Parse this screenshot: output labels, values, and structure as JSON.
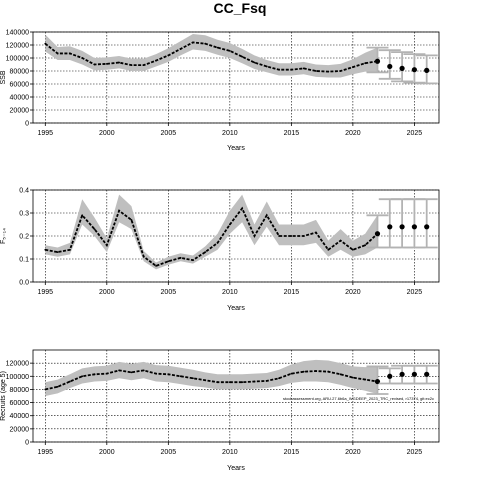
{
  "title": "CC_Fsq",
  "colors": {
    "band": "#bfbfbf",
    "line": "#000000",
    "forecast_bar": "#b3b3b3",
    "grid": "#000000"
  },
  "annotation": "stockassessment.org, ARU.27.6b6a_WGDEEP_2023_TRC_revised, r17374, git:ec2c",
  "chart_data": [
    {
      "type": "line",
      "xlabel": "Years",
      "ylabel": "SSB",
      "xlim": [
        1994,
        2027
      ],
      "ylim": [
        0,
        140000
      ],
      "x_ticks": [
        1995,
        2000,
        2005,
        2010,
        2015,
        2020,
        2025
      ],
      "y_ticks": [
        0,
        20000,
        40000,
        60000,
        80000,
        100000,
        120000,
        140000
      ],
      "grid": true,
      "x": [
        1995,
        1996,
        1997,
        1998,
        1999,
        2000,
        2001,
        2002,
        2003,
        2004,
        2005,
        2006,
        2007,
        2008,
        2009,
        2010,
        2011,
        2012,
        2013,
        2014,
        2015,
        2016,
        2017,
        2018,
        2019,
        2020,
        2021,
        2022
      ],
      "values": [
        122000,
        107000,
        107000,
        100000,
        90000,
        91000,
        93000,
        89000,
        89000,
        96000,
        104000,
        114000,
        124000,
        122000,
        116000,
        111000,
        102000,
        93000,
        87000,
        82000,
        82000,
        84000,
        80000,
        79000,
        80000,
        86000,
        92000,
        95000
      ],
      "lower": [
        110000,
        97000,
        97000,
        90000,
        81000,
        82000,
        84000,
        80000,
        80000,
        87000,
        94000,
        104000,
        113000,
        111000,
        105000,
        100000,
        92000,
        83000,
        78000,
        73000,
        73000,
        75000,
        71000,
        70000,
        70000,
        75000,
        79000,
        78000
      ],
      "upper": [
        136000,
        117000,
        118000,
        111000,
        100000,
        101000,
        103000,
        99000,
        99000,
        106000,
        115000,
        126000,
        137000,
        135000,
        128000,
        123000,
        114000,
        104000,
        97000,
        92000,
        92000,
        94000,
        90000,
        89000,
        91000,
        98000,
        108000,
        116000
      ],
      "forecast": {
        "x": [
          2022,
          2023,
          2024,
          2025,
          2026
        ],
        "values": [
          95000,
          87000,
          84000,
          82000,
          81000
        ],
        "lower": [
          78000,
          68000,
          64000,
          62000,
          61000
        ],
        "upper": [
          116000,
          112000,
          109000,
          106000,
          104000
        ]
      }
    },
    {
      "type": "line",
      "xlabel": "Years",
      "ylabel": "F₅₋₁₄",
      "xlim": [
        1994,
        2027
      ],
      "ylim": [
        0,
        0.4
      ],
      "x_ticks": [
        1995,
        2000,
        2005,
        2010,
        2015,
        2020,
        2025
      ],
      "y_ticks": [
        0.0,
        0.1,
        0.2,
        0.3,
        0.4
      ],
      "grid": true,
      "x": [
        1995,
        1996,
        1997,
        1998,
        1999,
        2000,
        2001,
        2002,
        2003,
        2004,
        2005,
        2006,
        2007,
        2008,
        2009,
        2010,
        2011,
        2012,
        2013,
        2014,
        2015,
        2016,
        2017,
        2018,
        2019,
        2020,
        2021,
        2022
      ],
      "values": [
        0.14,
        0.13,
        0.14,
        0.29,
        0.23,
        0.16,
        0.31,
        0.27,
        0.11,
        0.07,
        0.09,
        0.105,
        0.095,
        0.13,
        0.17,
        0.25,
        0.32,
        0.2,
        0.29,
        0.2,
        0.2,
        0.2,
        0.215,
        0.14,
        0.18,
        0.14,
        0.16,
        0.21
      ],
      "lower": [
        0.12,
        0.11,
        0.12,
        0.25,
        0.2,
        0.13,
        0.26,
        0.23,
        0.09,
        0.055,
        0.075,
        0.09,
        0.08,
        0.11,
        0.14,
        0.21,
        0.26,
        0.16,
        0.24,
        0.16,
        0.16,
        0.16,
        0.17,
        0.11,
        0.14,
        0.11,
        0.12,
        0.15
      ],
      "upper": [
        0.16,
        0.15,
        0.17,
        0.36,
        0.28,
        0.19,
        0.38,
        0.33,
        0.135,
        0.085,
        0.11,
        0.125,
        0.115,
        0.155,
        0.21,
        0.31,
        0.38,
        0.25,
        0.35,
        0.25,
        0.25,
        0.25,
        0.27,
        0.18,
        0.23,
        0.18,
        0.21,
        0.29
      ],
      "forecast": {
        "x": [
          2022,
          2023,
          2024,
          2025,
          2026
        ],
        "values": [
          0.21,
          0.24,
          0.24,
          0.24,
          0.24
        ],
        "lower": [
          0.15,
          0.15,
          0.15,
          0.15,
          0.15
        ],
        "upper": [
          0.29,
          0.36,
          0.36,
          0.36,
          0.36
        ]
      }
    },
    {
      "type": "line",
      "xlabel": "Years",
      "ylabel": "Recruits (age 5)",
      "xlim": [
        1994,
        2027
      ],
      "ylim": [
        0,
        140000
      ],
      "x_ticks": [
        1995,
        2000,
        2005,
        2010,
        2015,
        2020,
        2025
      ],
      "y_ticks": [
        0,
        20000,
        40000,
        60000,
        80000,
        100000,
        120000
      ],
      "grid": true,
      "x": [
        1995,
        1996,
        1997,
        1998,
        1999,
        2000,
        2001,
        2002,
        2003,
        2004,
        2005,
        2006,
        2007,
        2008,
        2009,
        2010,
        2011,
        2012,
        2013,
        2014,
        2015,
        2016,
        2017,
        2018,
        2019,
        2020,
        2021,
        2022
      ],
      "values": [
        80000,
        84000,
        92000,
        100000,
        103000,
        104000,
        109000,
        106000,
        109000,
        104000,
        103000,
        100000,
        97000,
        94000,
        91000,
        91000,
        91000,
        92000,
        93000,
        97000,
        104000,
        107000,
        108000,
        107000,
        103000,
        98000,
        95000,
        92000
      ],
      "lower": [
        70000,
        74000,
        82000,
        89000,
        92000,
        93000,
        97000,
        94000,
        97000,
        92000,
        91000,
        88000,
        85000,
        83000,
        80000,
        80000,
        80000,
        81000,
        82000,
        85000,
        90000,
        92000,
        92000,
        91000,
        87000,
        82000,
        78000,
        73000
      ],
      "upper": [
        91000,
        95000,
        103000,
        112000,
        115000,
        116000,
        122000,
        119000,
        122000,
        117000,
        116000,
        113000,
        110000,
        106000,
        103000,
        103000,
        103000,
        104000,
        105000,
        110000,
        118000,
        123000,
        125000,
        124000,
        120000,
        115000,
        114000,
        115000
      ],
      "forecast": {
        "x": [
          2022,
          2023,
          2024,
          2025,
          2026
        ],
        "values": [
          92000,
          100000,
          103000,
          103000,
          103000
        ],
        "lower": [
          73000,
          89000,
          89000,
          89000,
          89000
        ],
        "upper": [
          115000,
          112000,
          116000,
          116000,
          116000
        ]
      }
    }
  ]
}
